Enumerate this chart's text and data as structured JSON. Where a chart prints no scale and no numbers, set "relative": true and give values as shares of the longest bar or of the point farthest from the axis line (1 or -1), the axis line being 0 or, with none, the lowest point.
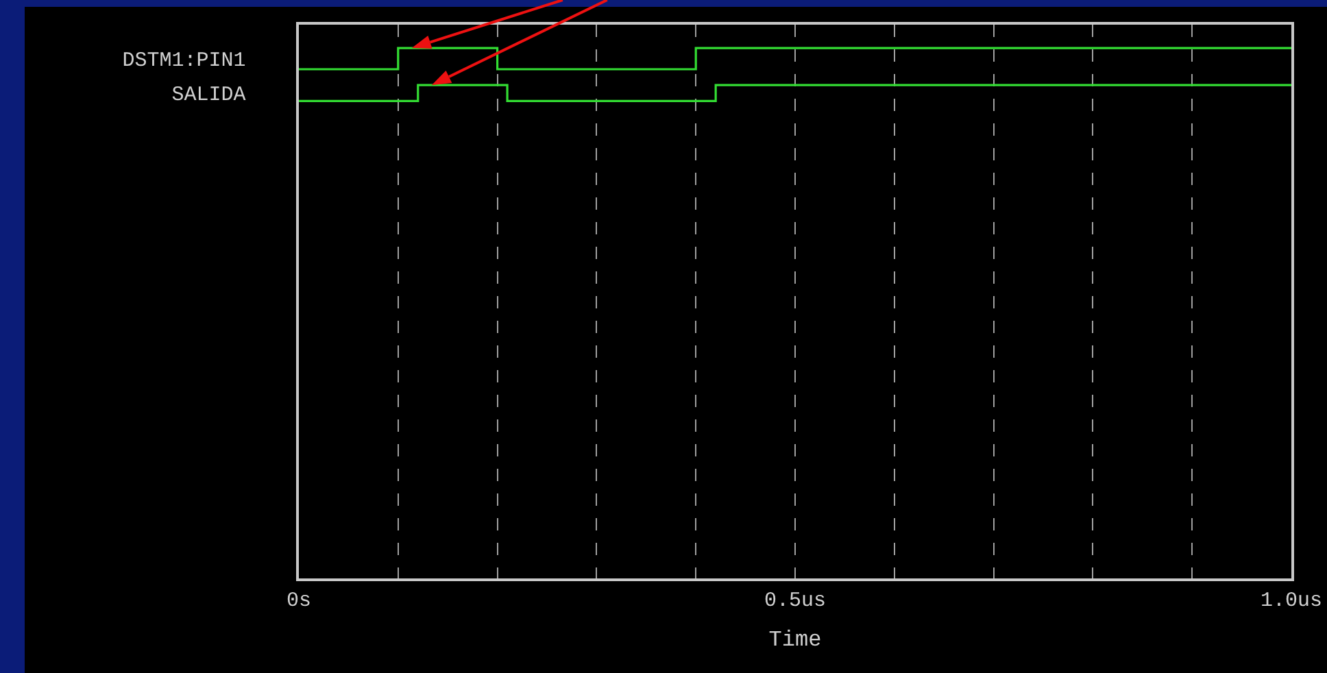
{
  "chart_data": {
    "type": "step",
    "relative": true,
    "xlabel": "Time",
    "xlim": [
      0,
      1
    ],
    "xticks": [
      {
        "value": 0,
        "label": "0s"
      },
      {
        "value": 0.1,
        "label": null
      },
      {
        "value": 0.2,
        "label": null
      },
      {
        "value": 0.3,
        "label": null
      },
      {
        "value": 0.4,
        "label": null
      },
      {
        "value": 0.5,
        "label": "0.5us"
      },
      {
        "value": 0.6,
        "label": null
      },
      {
        "value": 0.7,
        "label": null
      },
      {
        "value": 0.8,
        "label": null
      },
      {
        "value": 0.9,
        "label": null
      },
      {
        "value": 1,
        "label": "1.0us"
      }
    ],
    "grid": "x",
    "legend": false,
    "marker": "none",
    "line_style": "solid",
    "series": [
      {
        "name": "DSTM1:PIN1",
        "color": "#33dd33",
        "x": [
          0,
          0.1,
          0.2,
          0.4,
          1
        ],
        "values": [
          0.96,
          1,
          0.96,
          1,
          1
        ]
      },
      {
        "name": "SALIDA",
        "color": "#33dd33",
        "x": [
          0,
          0.12,
          0.21,
          0.42,
          1
        ],
        "values": [
          0.9,
          0.93,
          0.9,
          0.93,
          0.93
        ]
      }
    ]
  }
}
